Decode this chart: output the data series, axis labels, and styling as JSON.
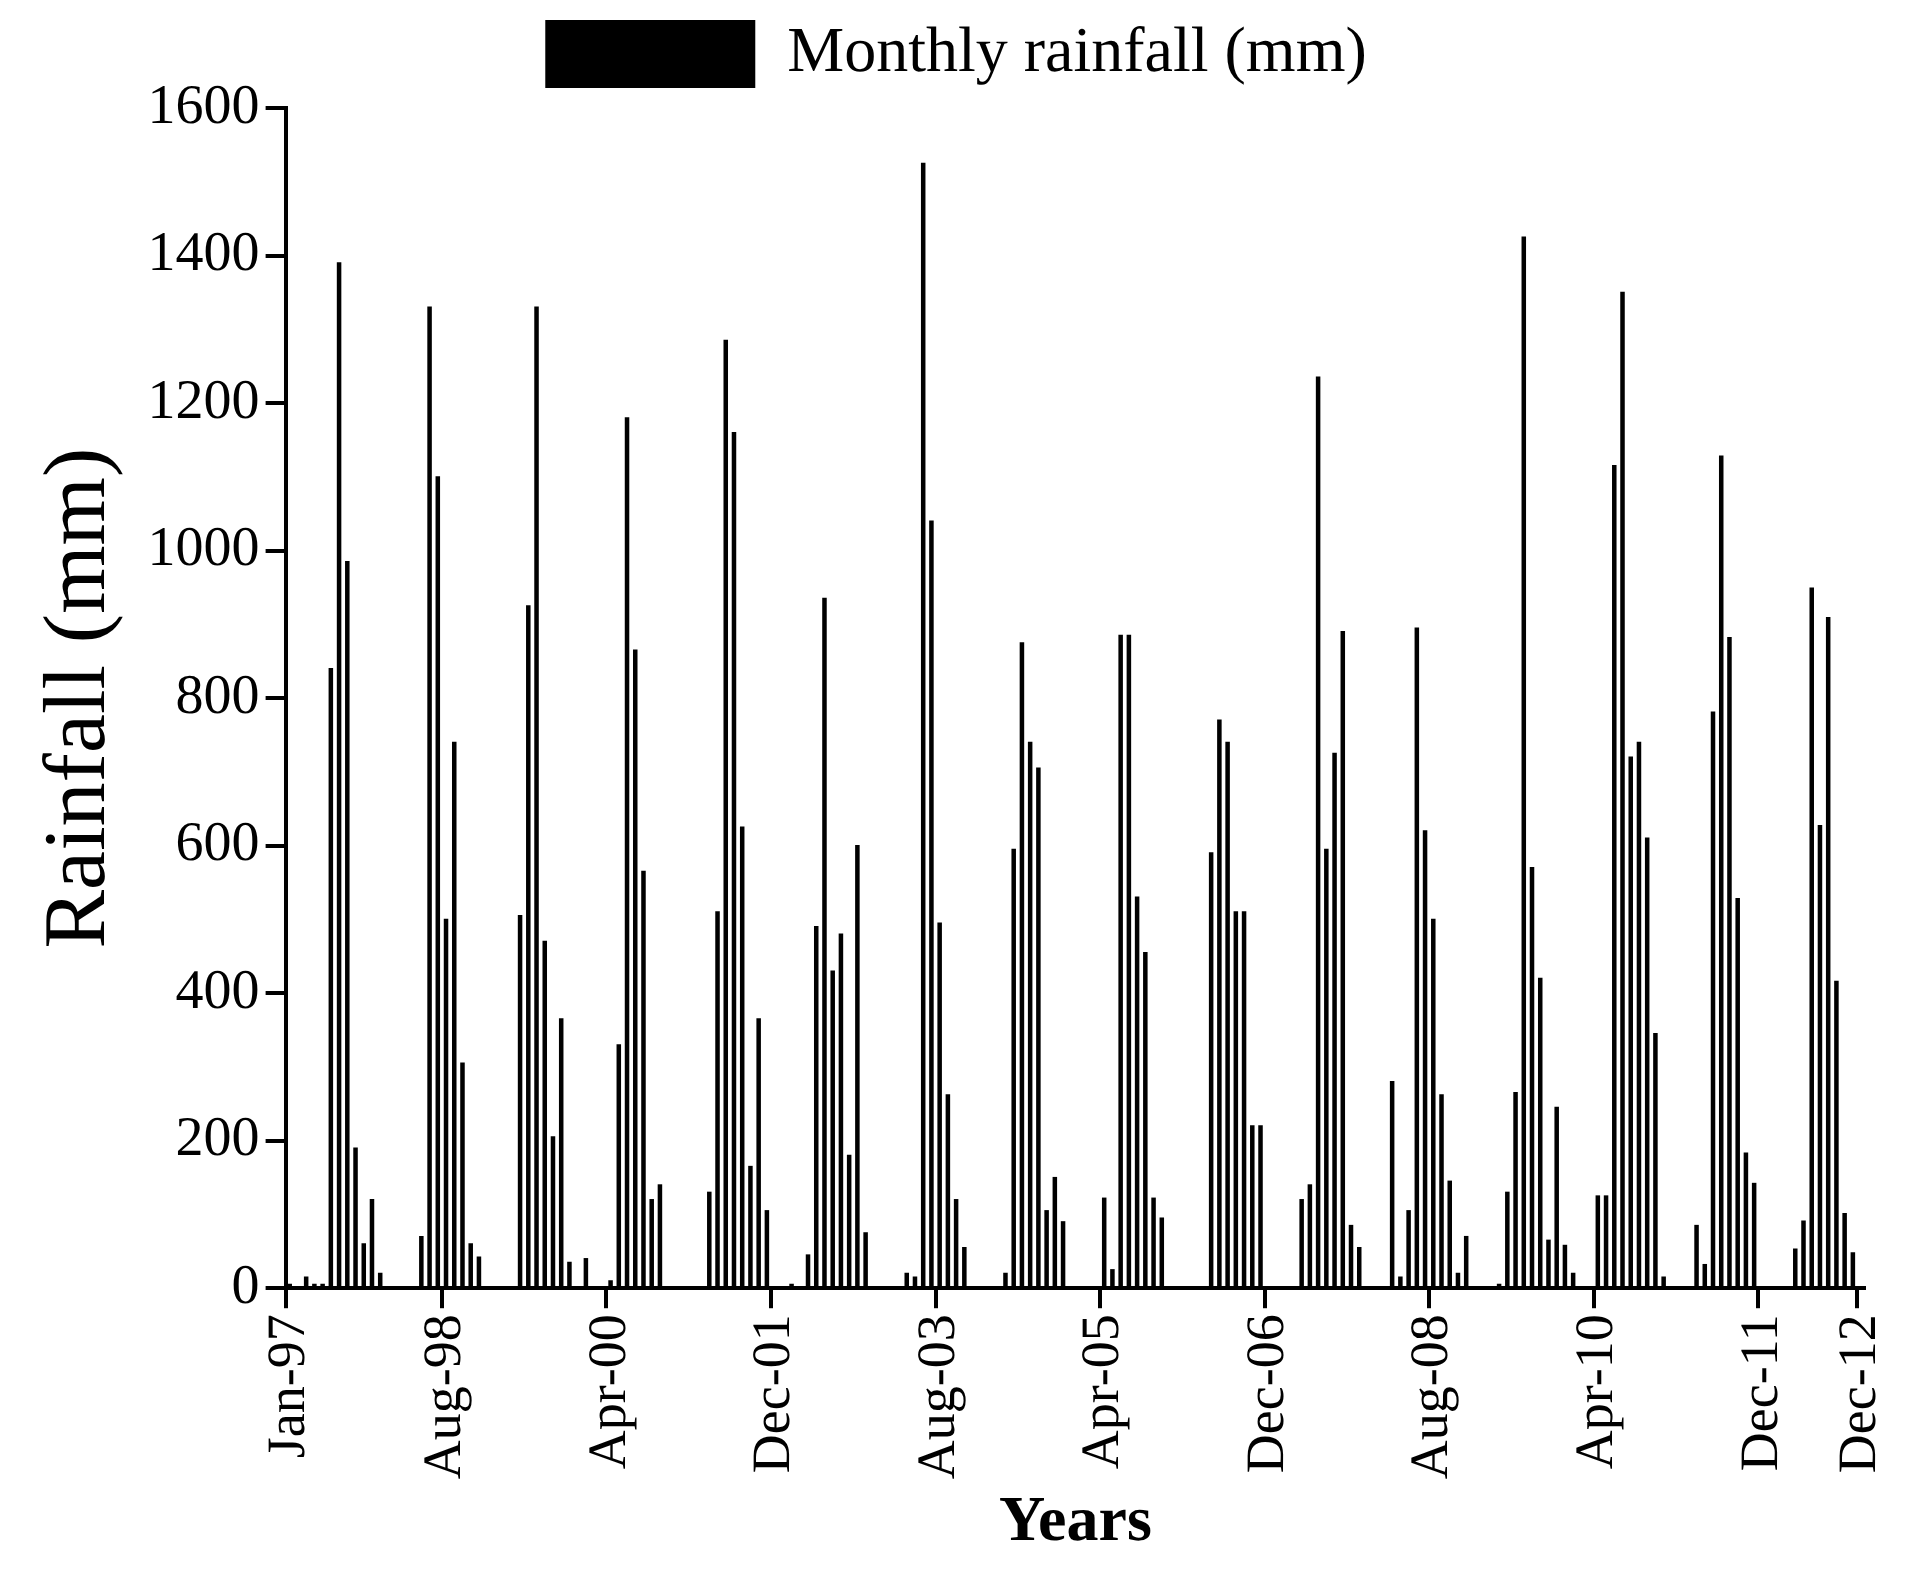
{
  "chart_data": {
    "type": "bar",
    "xlabel": "Years",
    "ylabel": "Rainfall (mm)",
    "categories": [
      "Jan-97",
      null,
      null,
      null,
      null,
      null,
      null,
      null,
      null,
      null,
      null,
      null,
      null,
      null,
      null,
      null,
      null,
      null,
      null,
      "Aug-98",
      null,
      null,
      null,
      null,
      null,
      null,
      null,
      null,
      null,
      null,
      null,
      null,
      null,
      null,
      null,
      null,
      null,
      null,
      null,
      "Apr-00",
      null,
      null,
      null,
      null,
      null,
      null,
      null,
      null,
      null,
      null,
      null,
      null,
      null,
      null,
      null,
      null,
      null,
      null,
      null,
      "Dec-01",
      null,
      null,
      null,
      null,
      null,
      null,
      null,
      null,
      null,
      null,
      null,
      null,
      null,
      null,
      null,
      null,
      null,
      null,
      null,
      "Aug-03",
      null,
      null,
      null,
      null,
      null,
      null,
      null,
      null,
      null,
      null,
      null,
      null,
      null,
      null,
      null,
      null,
      null,
      null,
      null,
      "Apr-05",
      null,
      null,
      null,
      null,
      null,
      null,
      null,
      null,
      null,
      null,
      null,
      null,
      null,
      null,
      null,
      null,
      null,
      null,
      null,
      "Dec-06",
      null,
      null,
      null,
      null,
      null,
      null,
      null,
      null,
      null,
      null,
      null,
      null,
      null,
      null,
      null,
      null,
      null,
      null,
      null,
      "Aug-08",
      null,
      null,
      null,
      null,
      null,
      null,
      null,
      null,
      null,
      null,
      null,
      null,
      null,
      null,
      null,
      null,
      null,
      null,
      null,
      "Apr-10",
      null,
      null,
      null,
      null,
      null,
      null,
      null,
      null,
      null,
      null,
      null,
      null,
      null,
      null,
      null,
      null,
      null,
      null,
      null,
      "Dec-11",
      null,
      null,
      null,
      null,
      null,
      null,
      null,
      null,
      null,
      null,
      null,
      "Dec-12"
    ],
    "series": [
      {
        "name": "Monthly rainfall (mm)",
        "color": "#000000",
        "values": [
          5,
          0,
          15,
          5,
          5,
          840,
          1390,
          985,
          190,
          60,
          120,
          20,
          0,
          0,
          0,
          0,
          70,
          1330,
          1100,
          500,
          740,
          305,
          60,
          42,
          0,
          0,
          0,
          0,
          505,
          925,
          1330,
          470,
          205,
          365,
          35,
          0,
          40,
          0,
          0,
          10,
          330,
          1180,
          865,
          565,
          120,
          140,
          0,
          0,
          0,
          0,
          0,
          130,
          510,
          1285,
          1160,
          625,
          165,
          365,
          105,
          0,
          0,
          5,
          0,
          45,
          490,
          935,
          430,
          480,
          180,
          600,
          75,
          0,
          0,
          0,
          0,
          20,
          15,
          1525,
          1040,
          495,
          262,
          120,
          55,
          0,
          0,
          0,
          0,
          20,
          595,
          875,
          740,
          705,
          105,
          150,
          90,
          0,
          0,
          0,
          0,
          122,
          25,
          885,
          885,
          530,
          455,
          122,
          95,
          0,
          0,
          0,
          0,
          0,
          590,
          770,
          740,
          510,
          510,
          220,
          220,
          0,
          0,
          0,
          0,
          120,
          140,
          1235,
          595,
          725,
          890,
          85,
          55,
          0,
          0,
          0,
          280,
          15,
          105,
          895,
          620,
          500,
          262,
          145,
          20,
          70,
          0,
          0,
          0,
          5,
          130,
          265,
          1425,
          570,
          420,
          65,
          245,
          58,
          20,
          0,
          0,
          125,
          125,
          1115,
          1350,
          720,
          740,
          610,
          345,
          15,
          0,
          0,
          0,
          85,
          32,
          781,
          1128,
          882,
          528,
          183,
          142,
          0,
          0,
          0,
          0,
          53,
          91,
          949,
          627,
          909,
          416,
          101,
          48,
          0
        ]
      }
    ],
    "ylim": [
      0,
      1600
    ],
    "yticks": [
      0,
      200,
      400,
      600,
      800,
      1000,
      1200,
      1400,
      1600
    ],
    "grid": false,
    "legend": "top"
  }
}
